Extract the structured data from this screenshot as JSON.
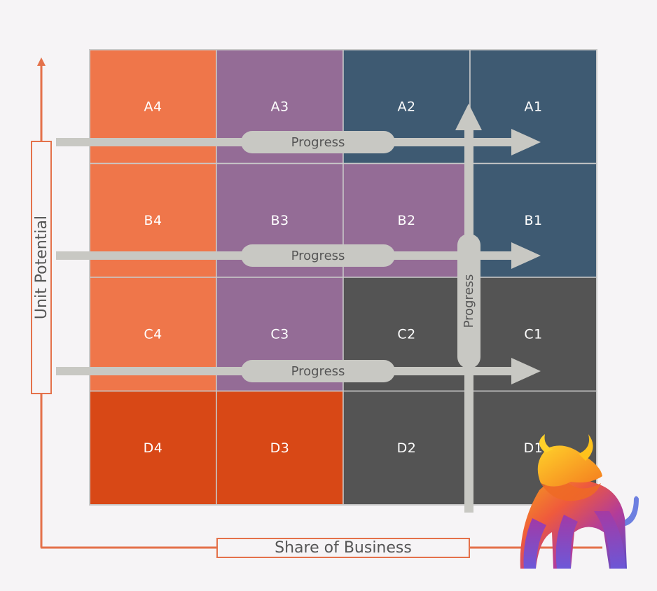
{
  "matrix": {
    "rows": [
      [
        {
          "id": "A4",
          "label": "A4",
          "color": "#ef764a"
        },
        {
          "id": "A3",
          "label": "A3",
          "color": "#946c96"
        },
        {
          "id": "A2",
          "label": "A2",
          "color": "#3e5a72"
        },
        {
          "id": "A1",
          "label": "A1",
          "color": "#3e5a72"
        }
      ],
      [
        {
          "id": "B4",
          "label": "B4",
          "color": "#ef764a"
        },
        {
          "id": "B3",
          "label": "B3",
          "color": "#946c96"
        },
        {
          "id": "B2",
          "label": "B2",
          "color": "#946c96"
        },
        {
          "id": "B1",
          "label": "B1",
          "color": "#3e5a72"
        }
      ],
      [
        {
          "id": "C4",
          "label": "C4",
          "color": "#ef764a"
        },
        {
          "id": "C3",
          "label": "C3",
          "color": "#946c96"
        },
        {
          "id": "C2",
          "label": "C2",
          "color": "#545454"
        },
        {
          "id": "C1",
          "label": "C1",
          "color": "#545454"
        }
      ],
      [
        {
          "id": "D4",
          "label": "D4",
          "color": "#d84816"
        },
        {
          "id": "D3",
          "label": "D3",
          "color": "#d84816"
        },
        {
          "id": "D2",
          "label": "D2",
          "color": "#545454"
        },
        {
          "id": "D1",
          "label": "D1",
          "color": "#545454"
        }
      ]
    ]
  },
  "progress_arrows": {
    "horizontal": [
      {
        "label": "Progress"
      },
      {
        "label": "Progress"
      },
      {
        "label": "Progress"
      }
    ],
    "vertical": {
      "label": "Progress"
    }
  },
  "axes": {
    "y_label": "Unit Potential",
    "x_label": "Share of Business"
  },
  "colors": {
    "axis": "#e4714a",
    "arrow": "#c8c8c3",
    "grid_line": "#c9c9c9",
    "text": "#555555"
  }
}
